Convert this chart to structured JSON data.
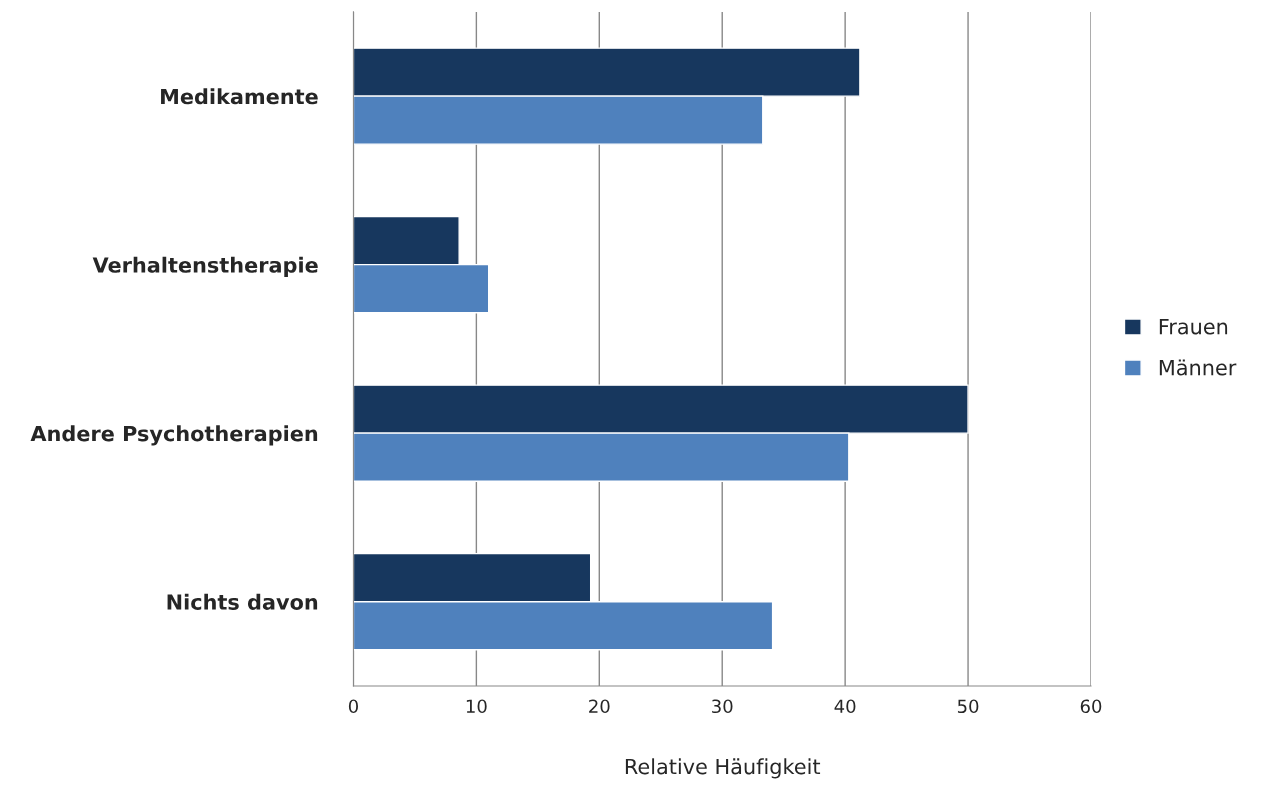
{
  "chart_data": {
    "type": "bar",
    "orientation": "horizontal",
    "xlabel": "Relative Häufigkeit",
    "categories": [
      "Medikamente",
      "Verhaltenstherapie",
      "Andere Psychotherapien",
      "Nichts davon"
    ],
    "series": [
      {
        "name": "Frauen",
        "color": "#17375e",
        "values": [
          41.2,
          8.6,
          50.0,
          19.3
        ]
      },
      {
        "name": "Männer",
        "color": "#4f81bd",
        "values": [
          33.3,
          11.0,
          40.3,
          34.1
        ]
      }
    ],
    "xlim": [
      0,
      60
    ],
    "xticks": [
      0,
      10,
      20,
      30,
      40,
      50,
      60
    ],
    "grid": "x",
    "legend": "right"
  }
}
